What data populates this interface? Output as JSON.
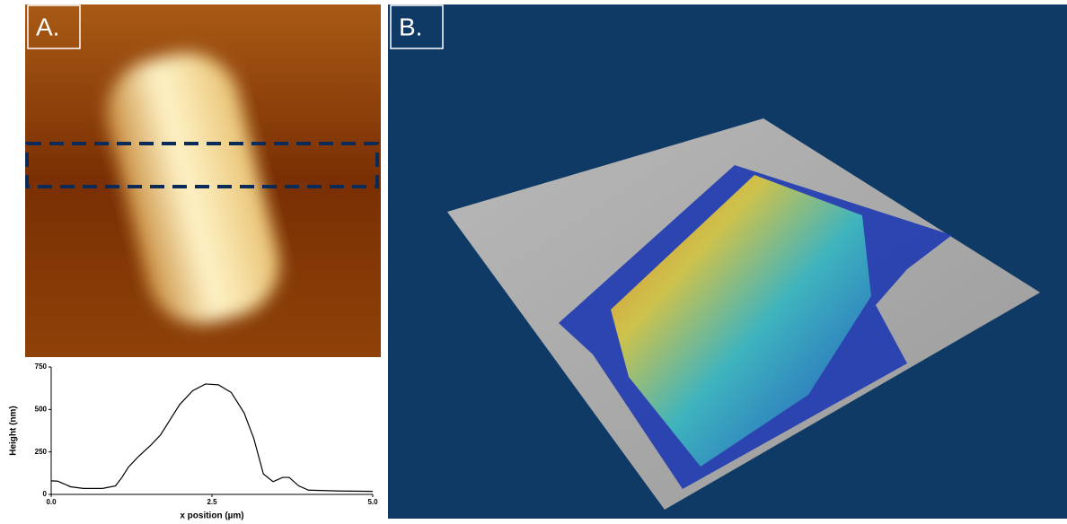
{
  "panels": {
    "a": "A.",
    "b": "B."
  },
  "chart_data": {
    "type": "line",
    "xlabel": "x position (µm)",
    "ylabel": "Height (nm)",
    "x": [
      0.0,
      0.1,
      0.2,
      0.3,
      0.5,
      0.8,
      1.0,
      1.1,
      1.2,
      1.35,
      1.55,
      1.7,
      1.85,
      2.0,
      2.2,
      2.4,
      2.6,
      2.8,
      3.0,
      3.15,
      3.3,
      3.45,
      3.6,
      3.7,
      3.85,
      4.0,
      4.5,
      5.0
    ],
    "series": [
      {
        "color": "#000000",
        "values": [
          80,
          78,
          62,
          45,
          35,
          35,
          50,
          100,
          160,
          220,
          290,
          350,
          440,
          530,
          610,
          650,
          645,
          600,
          480,
          330,
          120,
          75,
          100,
          100,
          50,
          25,
          20,
          18
        ]
      }
    ],
    "xlim": [
      0,
      5
    ],
    "xticks": [
      {
        "value": 0,
        "label": "0.0"
      },
      {
        "value": 2.5,
        "label": "2.5"
      },
      {
        "value": 5,
        "label": "5.0"
      }
    ],
    "ylim": [
      0,
      750
    ],
    "yticks": [
      0,
      250,
      500,
      750
    ]
  }
}
